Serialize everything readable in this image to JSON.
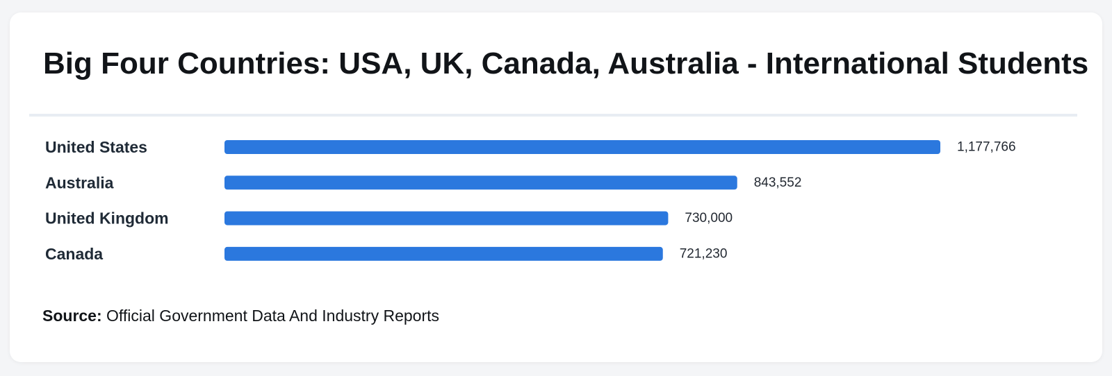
{
  "title": "Big Four Countries: USA, UK, Canada, Australia - International Students",
  "source": {
    "label": "Source:",
    "text": "Official Government Data And Industry Reports"
  },
  "colors": {
    "bar": "#2b78de",
    "divider": "#e8edf3"
  },
  "chart_data": {
    "type": "bar",
    "orientation": "horizontal",
    "categories": [
      "United States",
      "Australia",
      "United Kingdom",
      "Canada"
    ],
    "values": [
      1177766,
      843552,
      730000,
      721230
    ],
    "value_labels": [
      "1,177,766",
      "843,552",
      "730,000",
      "721,230"
    ],
    "title": "Big Four Countries: USA, UK, Canada, Australia - International Students",
    "xlabel": "",
    "ylabel": "",
    "grid": false,
    "legend": "none"
  }
}
